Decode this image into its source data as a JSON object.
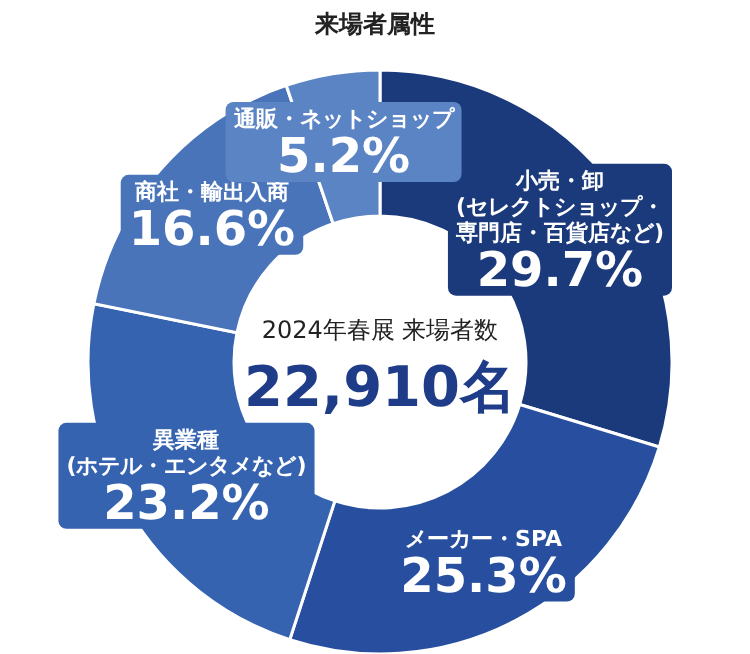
{
  "chart_data": {
    "type": "donut",
    "title": "来場者属性",
    "categories": [
      "小売・卸(セレクトショップ・専門店・百貨店など)",
      "メーカー・SPA",
      "異業種(ホテル・エンタメなど)",
      "商社・輸出入商",
      "通販・ネットショップ"
    ],
    "values": [
      29.7,
      25.3,
      23.2,
      16.6,
      5.2
    ],
    "value_labels": [
      "29.7%",
      "25.3%",
      "23.2%",
      "16.6%",
      "5.2%"
    ],
    "colors": [
      "#1b3a7c",
      "#284f9f",
      "#3563b0",
      "#4a74ba",
      "#5b84c4"
    ],
    "annotations": [
      "2024年春展 来場者数",
      "22,910名"
    ]
  }
}
